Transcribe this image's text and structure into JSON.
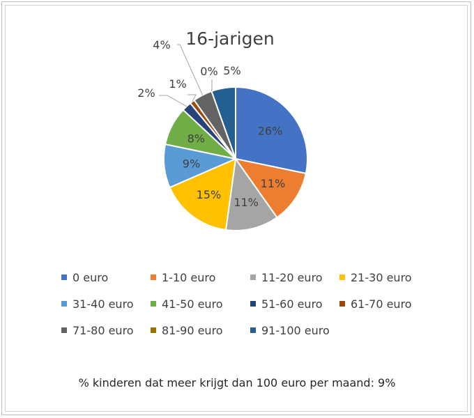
{
  "chart_data": {
    "type": "pie",
    "title": "16-jarigen",
    "categories": [
      "0 euro",
      "1-10 euro",
      "11-20 euro",
      "21-30 euro",
      "31-40 euro",
      "41-50 euro",
      "51-60 euro",
      "61-70 euro",
      "71-80 euro",
      "81-90 euro",
      "91-100 euro"
    ],
    "values": [
      26,
      11,
      11,
      15,
      9,
      8,
      2,
      1,
      4,
      0,
      5
    ],
    "labels": [
      "26%",
      "11%",
      "11%",
      "15%",
      "9%",
      "8%",
      "2%",
      "1%",
      "4%",
      "0%",
      "5%"
    ],
    "colors": [
      "#4472C4",
      "#ED7D31",
      "#A5A5A5",
      "#FFC000",
      "#5B9BD5",
      "#70AD47",
      "#264478",
      "#9E480E",
      "#636363",
      "#997300",
      "#255E91"
    ],
    "legend_position": "bottom"
  },
  "footnote": "% kinderen dat meer krijgt dan 100 euro per maand: 9%"
}
